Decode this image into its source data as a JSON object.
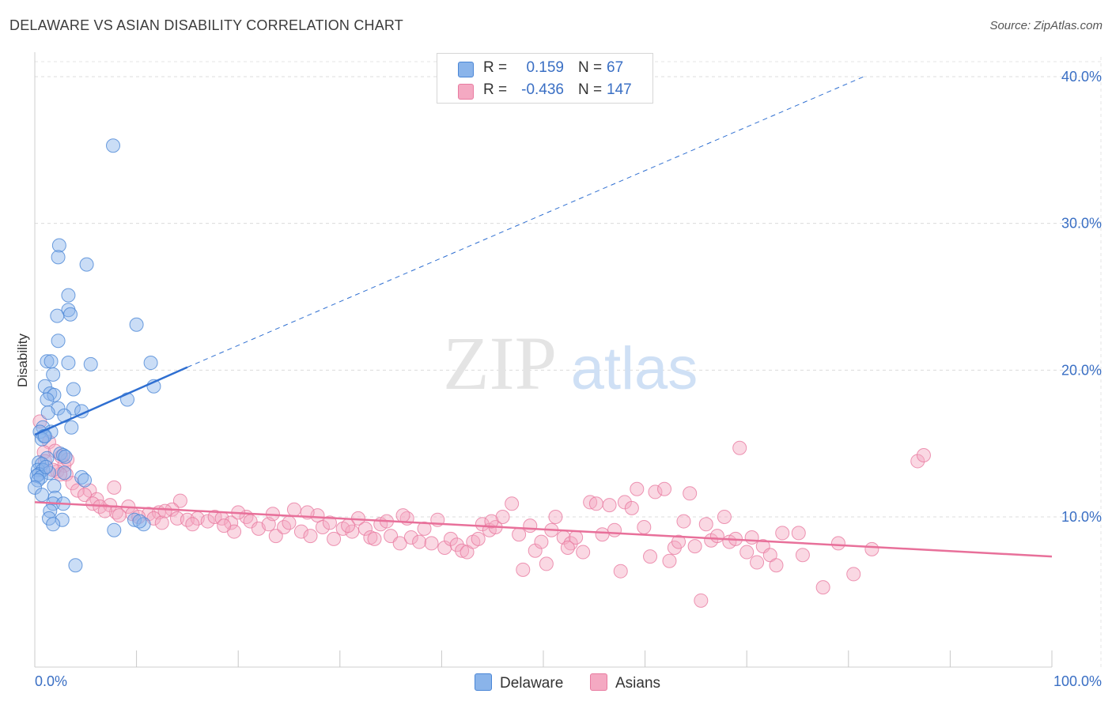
{
  "header": {
    "title": "DELAWARE VS ASIAN DISABILITY CORRELATION CHART",
    "source": "Source: ZipAtlas.com"
  },
  "watermark": {
    "zip": "ZIP",
    "atlas": "atlas"
  },
  "legend": {
    "rows": [
      {
        "r_label": "R =",
        "r_value": "0.159",
        "n_label": "N =",
        "n_value": "67",
        "color": "#8ab4ea"
      },
      {
        "r_label": "R =",
        "r_value": "-0.436",
        "n_label": "N =",
        "n_value": "147",
        "color": "#f4a9c2"
      }
    ]
  },
  "bottom_legend": {
    "delaware": "Delaware",
    "asians": "Asians"
  },
  "colors": {
    "delaware_fill": "#8ab4ea",
    "delaware_stroke": "#4a86d6",
    "delaware_line": "#2f6fd1",
    "asians_fill": "#f4a9c2",
    "asians_stroke": "#e87ba0",
    "asians_line": "#e8709a",
    "axis_text": "#3a6fc4"
  },
  "chart_data": {
    "type": "scatter",
    "title": "DELAWARE VS ASIAN DISABILITY CORRELATION CHART",
    "xlabel": "",
    "ylabel": "Disability",
    "xlim": [
      0,
      100
    ],
    "ylim": [
      0,
      42
    ],
    "x_tick_labels": [
      "0.0%",
      "100.0%"
    ],
    "y_ticks": [
      10,
      20,
      30,
      40
    ],
    "y_tick_labels": [
      "10.0%",
      "20.0%",
      "30.0%",
      "40.0%"
    ],
    "grid": true,
    "legend_position": "top-center",
    "series": [
      {
        "name": "Delaware",
        "r": 0.159,
        "n": 67,
        "trend": {
          "x": [
            0,
            15
          ],
          "y": [
            15.6,
            20.2
          ],
          "extended_to": [
            81.5,
            40.0
          ]
        },
        "points": [
          [
            7.7,
            35.3
          ],
          [
            2.4,
            28.5
          ],
          [
            2.3,
            27.7
          ],
          [
            5.1,
            27.2
          ],
          [
            3.3,
            25.1
          ],
          [
            3.3,
            24.1
          ],
          [
            3.5,
            23.8
          ],
          [
            2.2,
            23.7
          ],
          [
            10.0,
            23.1
          ],
          [
            2.3,
            22.0
          ],
          [
            1.2,
            20.6
          ],
          [
            1.6,
            20.6
          ],
          [
            3.3,
            20.5
          ],
          [
            5.5,
            20.4
          ],
          [
            11.4,
            20.5
          ],
          [
            1.8,
            19.7
          ],
          [
            1.0,
            18.9
          ],
          [
            11.7,
            18.9
          ],
          [
            3.8,
            18.7
          ],
          [
            1.5,
            18.4
          ],
          [
            1.9,
            18.3
          ],
          [
            1.2,
            18.0
          ],
          [
            9.1,
            18.0
          ],
          [
            2.3,
            17.4
          ],
          [
            3.8,
            17.4
          ],
          [
            4.6,
            17.2
          ],
          [
            1.3,
            17.1
          ],
          [
            2.9,
            16.9
          ],
          [
            0.8,
            16.1
          ],
          [
            3.6,
            16.1
          ],
          [
            1.6,
            15.8
          ],
          [
            0.5,
            15.8
          ],
          [
            0.9,
            15.5
          ],
          [
            0.7,
            15.3
          ],
          [
            1.0,
            15.5
          ],
          [
            2.5,
            14.3
          ],
          [
            2.8,
            14.2
          ],
          [
            3.0,
            14.1
          ],
          [
            1.2,
            14.0
          ],
          [
            0.4,
            13.7
          ],
          [
            0.7,
            13.6
          ],
          [
            0.3,
            13.2
          ],
          [
            0.8,
            13.2
          ],
          [
            1.4,
            13.0
          ],
          [
            2.9,
            13.0
          ],
          [
            0.4,
            12.9
          ],
          [
            0.2,
            12.8
          ],
          [
            0.6,
            12.7
          ],
          [
            4.6,
            12.7
          ],
          [
            4.9,
            12.5
          ],
          [
            0.3,
            12.5
          ],
          [
            1.9,
            12.1
          ],
          [
            0.0,
            12.0
          ],
          [
            2.0,
            11.3
          ],
          [
            0.7,
            11.5
          ],
          [
            1.8,
            10.9
          ],
          [
            2.8,
            10.9
          ],
          [
            1.5,
            10.4
          ],
          [
            1.4,
            9.9
          ],
          [
            2.7,
            9.8
          ],
          [
            1.8,
            9.5
          ],
          [
            9.8,
            9.8
          ],
          [
            10.7,
            9.5
          ],
          [
            10.3,
            9.7
          ],
          [
            7.8,
            9.1
          ],
          [
            4.0,
            6.7
          ],
          [
            1.1,
            13.4
          ]
        ]
      },
      {
        "name": "Asians",
        "r": -0.436,
        "n": 147,
        "trend": {
          "x": [
            0,
            100
          ],
          "y": [
            11.0,
            7.3
          ]
        },
        "points": [
          [
            0.5,
            16.5
          ],
          [
            1.4,
            15.1
          ],
          [
            0.9,
            14.4
          ],
          [
            2.0,
            14.5
          ],
          [
            2.6,
            14.1
          ],
          [
            1.0,
            13.8
          ],
          [
            2.9,
            13.5
          ],
          [
            2.2,
            13.1
          ],
          [
            3.1,
            12.9
          ],
          [
            2.5,
            12.9
          ],
          [
            3.7,
            12.3
          ],
          [
            7.8,
            12.0
          ],
          [
            4.2,
            11.8
          ],
          [
            5.4,
            11.8
          ],
          [
            4.9,
            11.5
          ],
          [
            6.1,
            11.2
          ],
          [
            5.7,
            10.9
          ],
          [
            6.4,
            10.7
          ],
          [
            7.4,
            10.8
          ],
          [
            9.2,
            10.7
          ],
          [
            8.0,
            10.3
          ],
          [
            9.6,
            10.2
          ],
          [
            11.2,
            10.2
          ],
          [
            12.2,
            10.3
          ],
          [
            14.3,
            11.1
          ],
          [
            13.5,
            10.5
          ],
          [
            11.7,
            9.9
          ],
          [
            12.5,
            9.6
          ],
          [
            14.0,
            9.9
          ],
          [
            15.0,
            9.8
          ],
          [
            16.0,
            9.9
          ],
          [
            15.5,
            9.5
          ],
          [
            17.0,
            9.7
          ],
          [
            17.7,
            10.0
          ],
          [
            18.4,
            9.9
          ],
          [
            19.3,
            9.6
          ],
          [
            19.6,
            9.0
          ],
          [
            20.8,
            10.0
          ],
          [
            21.2,
            9.7
          ],
          [
            22.0,
            9.2
          ],
          [
            23.0,
            9.5
          ],
          [
            23.4,
            10.2
          ],
          [
            23.7,
            8.7
          ],
          [
            24.5,
            9.3
          ],
          [
            25.0,
            9.6
          ],
          [
            25.5,
            10.5
          ],
          [
            26.2,
            9.0
          ],
          [
            27.1,
            8.7
          ],
          [
            27.8,
            10.1
          ],
          [
            28.3,
            9.3
          ],
          [
            29.0,
            9.6
          ],
          [
            29.4,
            8.5
          ],
          [
            30.3,
            9.2
          ],
          [
            31.2,
            9.0
          ],
          [
            31.8,
            9.9
          ],
          [
            32.5,
            9.2
          ],
          [
            33.0,
            8.6
          ],
          [
            33.4,
            8.5
          ],
          [
            34.0,
            9.5
          ],
          [
            34.6,
            9.7
          ],
          [
            35.0,
            8.7
          ],
          [
            35.9,
            8.2
          ],
          [
            36.6,
            9.9
          ],
          [
            37.0,
            8.6
          ],
          [
            37.8,
            8.3
          ],
          [
            38.3,
            9.2
          ],
          [
            39.0,
            8.2
          ],
          [
            39.6,
            9.8
          ],
          [
            40.3,
            7.9
          ],
          [
            40.9,
            8.5
          ],
          [
            41.5,
            8.1
          ],
          [
            42.0,
            7.7
          ],
          [
            42.5,
            7.6
          ],
          [
            43.1,
            8.3
          ],
          [
            43.6,
            8.5
          ],
          [
            44.0,
            9.5
          ],
          [
            44.7,
            9.1
          ],
          [
            45.3,
            9.3
          ],
          [
            46.0,
            10.0
          ],
          [
            46.9,
            10.9
          ],
          [
            47.6,
            8.8
          ],
          [
            48.0,
            6.4
          ],
          [
            48.7,
            9.4
          ],
          [
            49.2,
            7.7
          ],
          [
            49.8,
            8.3
          ],
          [
            50.3,
            6.8
          ],
          [
            50.8,
            9.1
          ],
          [
            51.2,
            10.0
          ],
          [
            52.0,
            8.6
          ],
          [
            52.7,
            8.2
          ],
          [
            53.2,
            8.6
          ],
          [
            53.9,
            7.6
          ],
          [
            54.6,
            11.0
          ],
          [
            55.2,
            10.9
          ],
          [
            55.8,
            8.8
          ],
          [
            56.5,
            10.8
          ],
          [
            57.0,
            9.1
          ],
          [
            57.6,
            6.3
          ],
          [
            58.0,
            11.0
          ],
          [
            58.7,
            10.6
          ],
          [
            59.2,
            11.9
          ],
          [
            59.9,
            9.3
          ],
          [
            60.5,
            7.3
          ],
          [
            61.0,
            11.7
          ],
          [
            61.9,
            11.9
          ],
          [
            62.4,
            7.0
          ],
          [
            62.9,
            7.9
          ],
          [
            63.3,
            8.3
          ],
          [
            63.8,
            9.7
          ],
          [
            64.4,
            11.6
          ],
          [
            64.9,
            8.0
          ],
          [
            65.5,
            4.3
          ],
          [
            66.0,
            9.5
          ],
          [
            66.5,
            8.4
          ],
          [
            67.1,
            8.7
          ],
          [
            67.8,
            10.0
          ],
          [
            68.3,
            8.3
          ],
          [
            68.9,
            8.5
          ],
          [
            69.3,
            14.7
          ],
          [
            70.0,
            7.6
          ],
          [
            70.5,
            8.6
          ],
          [
            71.0,
            6.9
          ],
          [
            71.6,
            8.0
          ],
          [
            72.3,
            7.4
          ],
          [
            72.9,
            6.7
          ],
          [
            73.5,
            8.9
          ],
          [
            75.1,
            8.9
          ],
          [
            75.5,
            7.4
          ],
          [
            77.5,
            5.2
          ],
          [
            79.0,
            8.2
          ],
          [
            80.5,
            6.1
          ],
          [
            82.3,
            7.8
          ],
          [
            86.8,
            13.8
          ],
          [
            87.4,
            14.2
          ],
          [
            3.2,
            13.9
          ],
          [
            1.8,
            13.2
          ],
          [
            6.9,
            10.4
          ],
          [
            8.3,
            10.1
          ],
          [
            10.2,
            10.0
          ],
          [
            12.8,
            10.4
          ],
          [
            18.6,
            9.4
          ],
          [
            20.0,
            10.3
          ],
          [
            26.8,
            10.3
          ],
          [
            30.8,
            9.4
          ],
          [
            36.2,
            10.1
          ],
          [
            44.9,
            9.7
          ],
          [
            52.4,
            7.9
          ]
        ]
      }
    ]
  }
}
